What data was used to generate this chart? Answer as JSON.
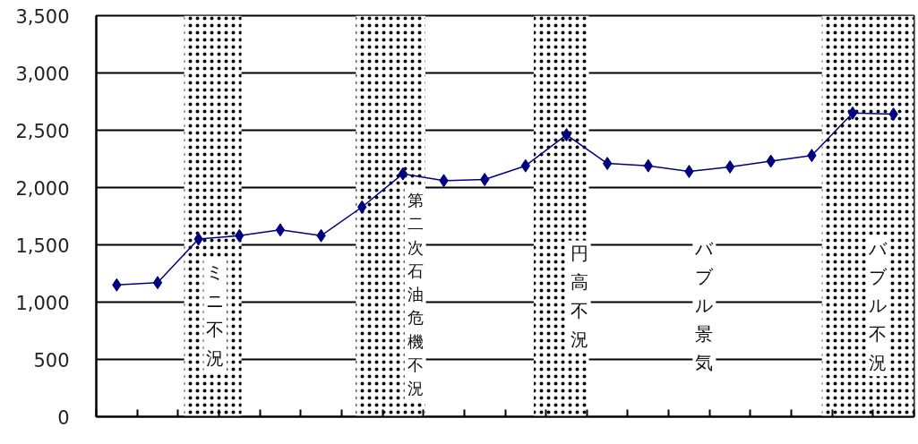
{
  "chart_data": {
    "type": "line",
    "categories": [
      null,
      null,
      null,
      null,
      null,
      null,
      null,
      null,
      null,
      null,
      null,
      null,
      null,
      null,
      null,
      null,
      null,
      null,
      null,
      null
    ],
    "series": [
      {
        "color": "#000080",
        "values": [
          1150,
          1170,
          1550,
          1580,
          1630,
          1580,
          1830,
          2120,
          2060,
          2070,
          2190,
          2460,
          2210,
          2190,
          2140,
          2180,
          2230,
          2280,
          2650,
          2640
        ]
      }
    ],
    "ylim": [
      0,
      3500
    ],
    "yticks": [
      0,
      500,
      {
        "value": 1000,
        "label": "1,000"
      },
      {
        "value": 1500,
        "label": "1,500"
      },
      {
        "value": 2000,
        "label": "2,000"
      },
      {
        "value": 2500,
        "label": "2,500"
      },
      {
        "value": 3000,
        "label": "3,000"
      },
      {
        "value": 3500,
        "label": "3,500"
      }
    ],
    "grid": "y",
    "marker": "diamond",
    "line_style": "solid",
    "annotations": [
      "ミニ不況",
      "第二次石油危機不況",
      "円高不況",
      "バブル景気",
      "バブル不況"
    ]
  }
}
